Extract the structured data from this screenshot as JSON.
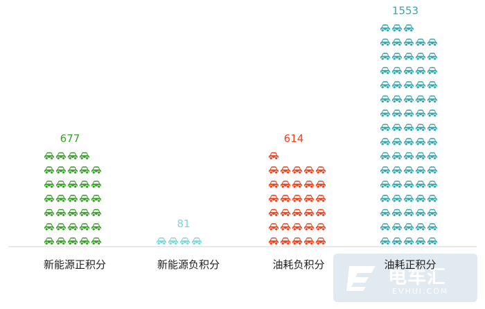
{
  "chart_data": {
    "type": "bar",
    "categories": [
      "新能源正积分",
      "新能源负积分",
      "油耗负积分",
      "油耗正积分"
    ],
    "values": [
      677,
      81,
      614,
      1553
    ],
    "series": [
      {
        "category": "新能源正积分",
        "value": 677,
        "color": "#3c9e2c",
        "icons": 34
      },
      {
        "category": "新能源负积分",
        "value": 81,
        "color": "#79d9d5",
        "icons": 4
      },
      {
        "category": "油耗负积分",
        "value": 614,
        "color": "#f0411d",
        "icons": 31
      },
      {
        "category": "油耗正积分",
        "value": 1553,
        "color": "#38a6ad",
        "icons": 78
      }
    ],
    "icon": "car-icon",
    "icons_per_row": 5,
    "grid": false,
    "legend": "none"
  },
  "watermark": {
    "cn": "电车汇",
    "en": "EVHUI.COM",
    "color": "#dde6ef"
  },
  "colors": {
    "axis": "#d0d0d0",
    "label": "#222222"
  }
}
